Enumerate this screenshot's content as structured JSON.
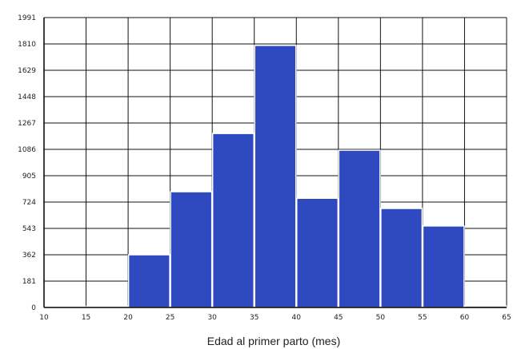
{
  "chart_data": {
    "type": "bar",
    "title": "",
    "xlabel": "Edad al primer parto (mes)",
    "ylabel": "",
    "x_ticks": [
      10,
      15,
      20,
      25,
      30,
      35,
      40,
      45,
      50,
      55,
      60,
      65
    ],
    "y_ticks": [
      0,
      181,
      362,
      543,
      724,
      905,
      1086,
      1267,
      1448,
      1629,
      1810,
      1991
    ],
    "xlim": [
      10,
      65
    ],
    "ylim": [
      0,
      1991
    ],
    "bins": [
      {
        "start": 10,
        "end": 15,
        "value": 2
      },
      {
        "start": 15,
        "end": 20,
        "value": 8
      },
      {
        "start": 20,
        "end": 25,
        "value": 362
      },
      {
        "start": 25,
        "end": 30,
        "value": 795
      },
      {
        "start": 30,
        "end": 35,
        "value": 1195
      },
      {
        "start": 35,
        "end": 40,
        "value": 1800
      },
      {
        "start": 40,
        "end": 45,
        "value": 750
      },
      {
        "start": 45,
        "end": 50,
        "value": 1080
      },
      {
        "start": 50,
        "end": 55,
        "value": 680
      },
      {
        "start": 55,
        "end": 60,
        "value": 560
      },
      {
        "start": 60,
        "end": 65,
        "value": 10
      }
    ],
    "grid": true,
    "bar_color": "#2f4ac0",
    "bar_edge_color": "#ffffff"
  }
}
